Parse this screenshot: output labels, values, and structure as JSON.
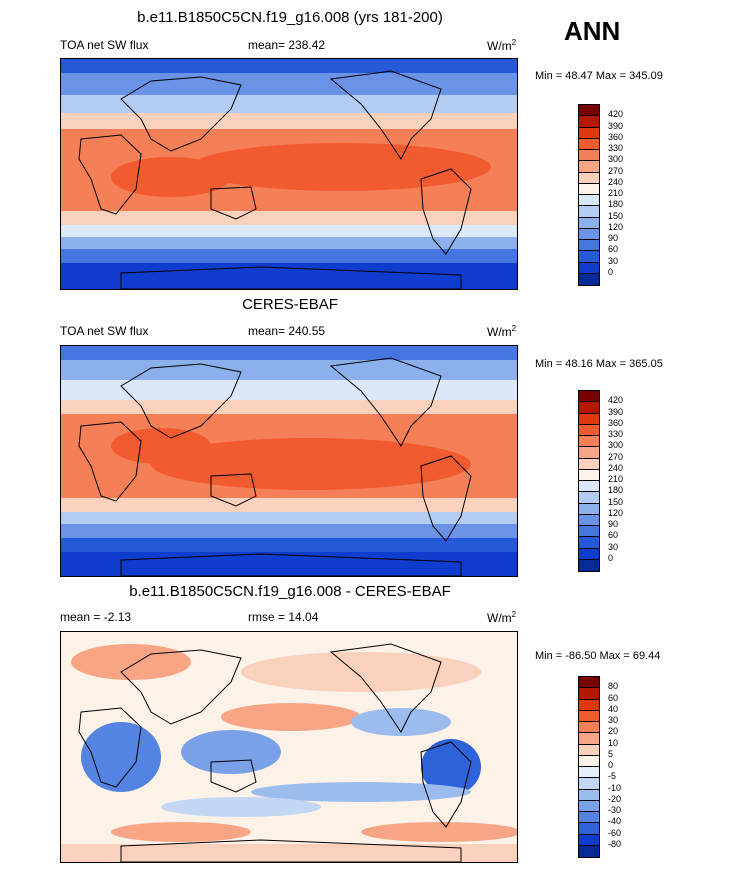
{
  "season": "ANN",
  "panels": [
    {
      "title": "b.e11.B1850C5CN.f19_g16.008 (yrs 181-200)",
      "left_label": "TOA net SW flux",
      "center_label": "mean= 238.42",
      "units": "W/m",
      "units_sup": "2",
      "minmax": "Min =  48.47 Max = 345.09",
      "levels": [
        "420",
        "390",
        "360",
        "330",
        "300",
        "270",
        "240",
        "210",
        "180",
        "150",
        "120",
        "90",
        "60",
        "30",
        "0"
      ],
      "colors": [
        "#7a0000",
        "#b51700",
        "#e0380c",
        "#f25a30",
        "#f57f56",
        "#f7a585",
        "#fad1bd",
        "#fdf2e8",
        "#dbe8f8",
        "#b3ccf2",
        "#8cb0ec",
        "#6a93e6",
        "#4576e0",
        "#2559d8",
        "#0f3ccc",
        "#072a9a"
      ]
    },
    {
      "title": "CERES-EBAF",
      "left_label": "TOA net SW flux",
      "center_label": "mean= 240.55",
      "units": "W/m",
      "units_sup": "2",
      "minmax": "Min =  48.16 Max = 365.05",
      "levels": [
        "420",
        "390",
        "360",
        "330",
        "300",
        "270",
        "240",
        "210",
        "180",
        "150",
        "120",
        "90",
        "60",
        "30",
        "0"
      ],
      "colors": [
        "#7a0000",
        "#b51700",
        "#e0380c",
        "#f25a30",
        "#f57f56",
        "#f7a585",
        "#fad1bd",
        "#fdf2e8",
        "#dbe8f8",
        "#b3ccf2",
        "#8cb0ec",
        "#6a93e6",
        "#4576e0",
        "#2559d8",
        "#0f3ccc",
        "#072a9a"
      ]
    },
    {
      "title": "b.e11.B1850C5CN.f19_g16.008 - CERES-EBAF",
      "left_label": "mean =  -2.13",
      "center_label": "rmse =  14.04",
      "units": "W/m",
      "units_sup": "2",
      "minmax": "Min = -86.50 Max =  69.44",
      "levels": [
        "80",
        "60",
        "40",
        "30",
        "20",
        "10",
        "5",
        "0",
        "-5",
        "-10",
        "-20",
        "-30",
        "-40",
        "-60",
        "-80"
      ],
      "colors": [
        "#7a0000",
        "#b51700",
        "#e0380c",
        "#f25a30",
        "#f57f56",
        "#f7a585",
        "#fad1bd",
        "#fdf2e8",
        "#e6eefa",
        "#c3d6f4",
        "#9dbcee",
        "#7aa1e8",
        "#5483e2",
        "#2e62d8",
        "#0f3ccc",
        "#072a9a"
      ]
    }
  ]
}
